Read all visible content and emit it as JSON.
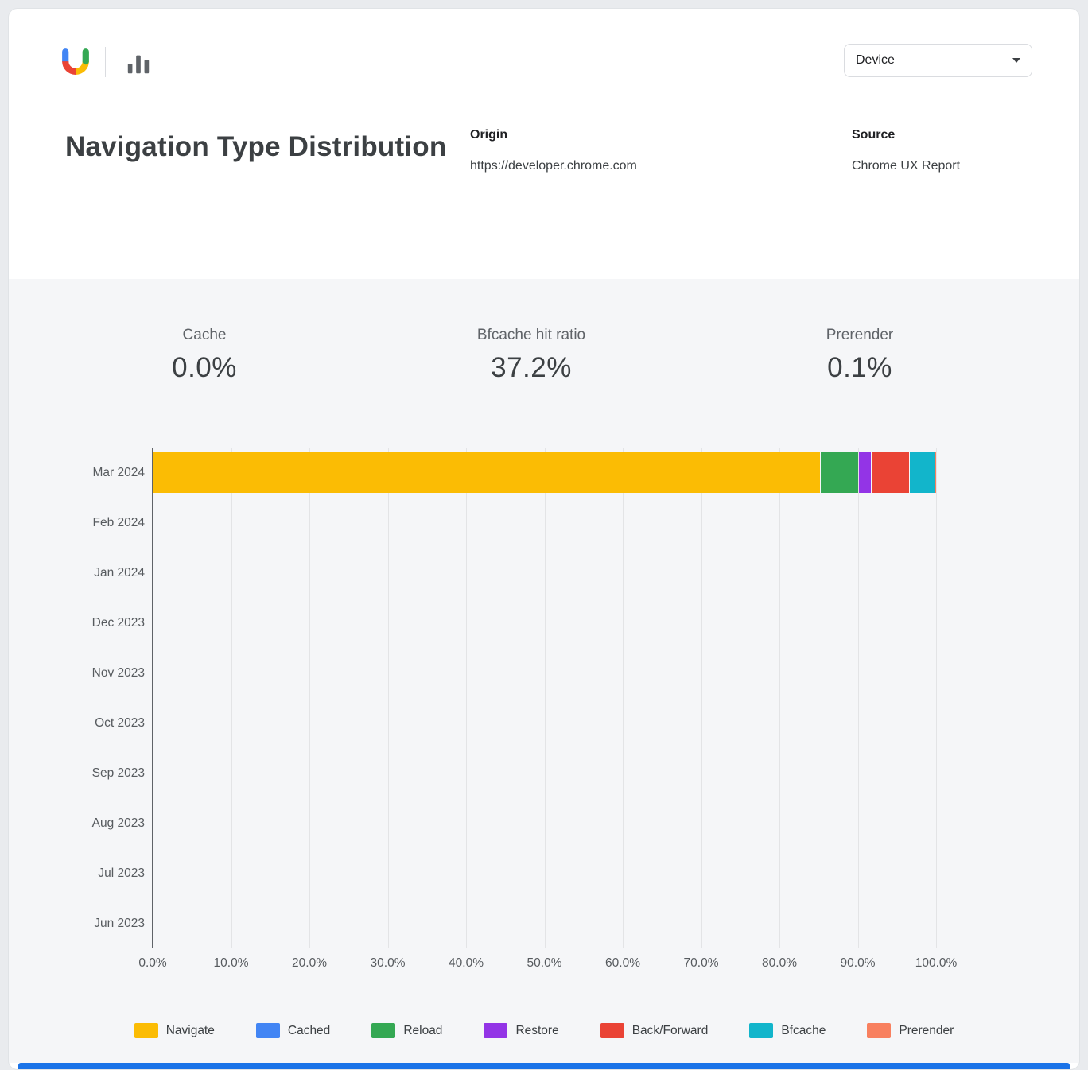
{
  "header": {
    "title": "Navigation Type Distribution",
    "device_filter": {
      "label": "Device"
    },
    "origin": {
      "label": "Origin",
      "value": "https://developer.chrome.com"
    },
    "source": {
      "label": "Source",
      "value": "Chrome UX Report"
    },
    "icons": {
      "logo": "chrome-ux-report-logo",
      "secondary": "bar-chart-icon",
      "dropdown": "chevron-down-icon"
    }
  },
  "kpis": [
    {
      "label": "Cache",
      "value": "0.0%"
    },
    {
      "label": "Bfcache hit ratio",
      "value": "37.2%"
    },
    {
      "label": "Prerender",
      "value": "0.1%"
    }
  ],
  "chart_data": {
    "type": "bar",
    "orientation": "horizontal",
    "stacked": true,
    "title": "Navigation Type Distribution",
    "categories": [
      "Mar 2024",
      "Feb 2024",
      "Jan 2024",
      "Dec 2023",
      "Nov 2023",
      "Oct 2023",
      "Sep 2023",
      "Aug 2023",
      "Jul 2023",
      "Jun 2023"
    ],
    "xlim": [
      0,
      100
    ],
    "x_tick_labels": [
      "0.0%",
      "10.0%",
      "20.0%",
      "30.0%",
      "40.0%",
      "50.0%",
      "60.0%",
      "70.0%",
      "80.0%",
      "90.0%",
      "100.0%"
    ],
    "grid": true,
    "legend_position": "bottom",
    "series": [
      {
        "name": "Navigate",
        "color": "#FBBC04",
        "values": [
          85.3,
          0,
          0,
          0,
          0,
          0,
          0,
          0,
          0,
          0
        ]
      },
      {
        "name": "Cached",
        "color": "#4285F4",
        "values": [
          0.0,
          0,
          0,
          0,
          0,
          0,
          0,
          0,
          0,
          0
        ]
      },
      {
        "name": "Reload",
        "color": "#34A853",
        "values": [
          4.9,
          0,
          0,
          0,
          0,
          0,
          0,
          0,
          0,
          0
        ]
      },
      {
        "name": "Restore",
        "color": "#9334E6",
        "values": [
          1.6,
          0,
          0,
          0,
          0,
          0,
          0,
          0,
          0,
          0
        ]
      },
      {
        "name": "Back/Forward",
        "color": "#EA4335",
        "values": [
          4.9,
          0,
          0,
          0,
          0,
          0,
          0,
          0,
          0,
          0
        ]
      },
      {
        "name": "Bfcache",
        "color": "#12B5CB",
        "values": [
          3.2,
          0,
          0,
          0,
          0,
          0,
          0,
          0,
          0,
          0
        ]
      },
      {
        "name": "Prerender",
        "color": "#F8805F",
        "values": [
          0.1,
          0,
          0,
          0,
          0,
          0,
          0,
          0,
          0,
          0
        ]
      }
    ]
  },
  "colors": {
    "section_background": "#F5F6F8",
    "footer_accent": "#1A73E8"
  }
}
